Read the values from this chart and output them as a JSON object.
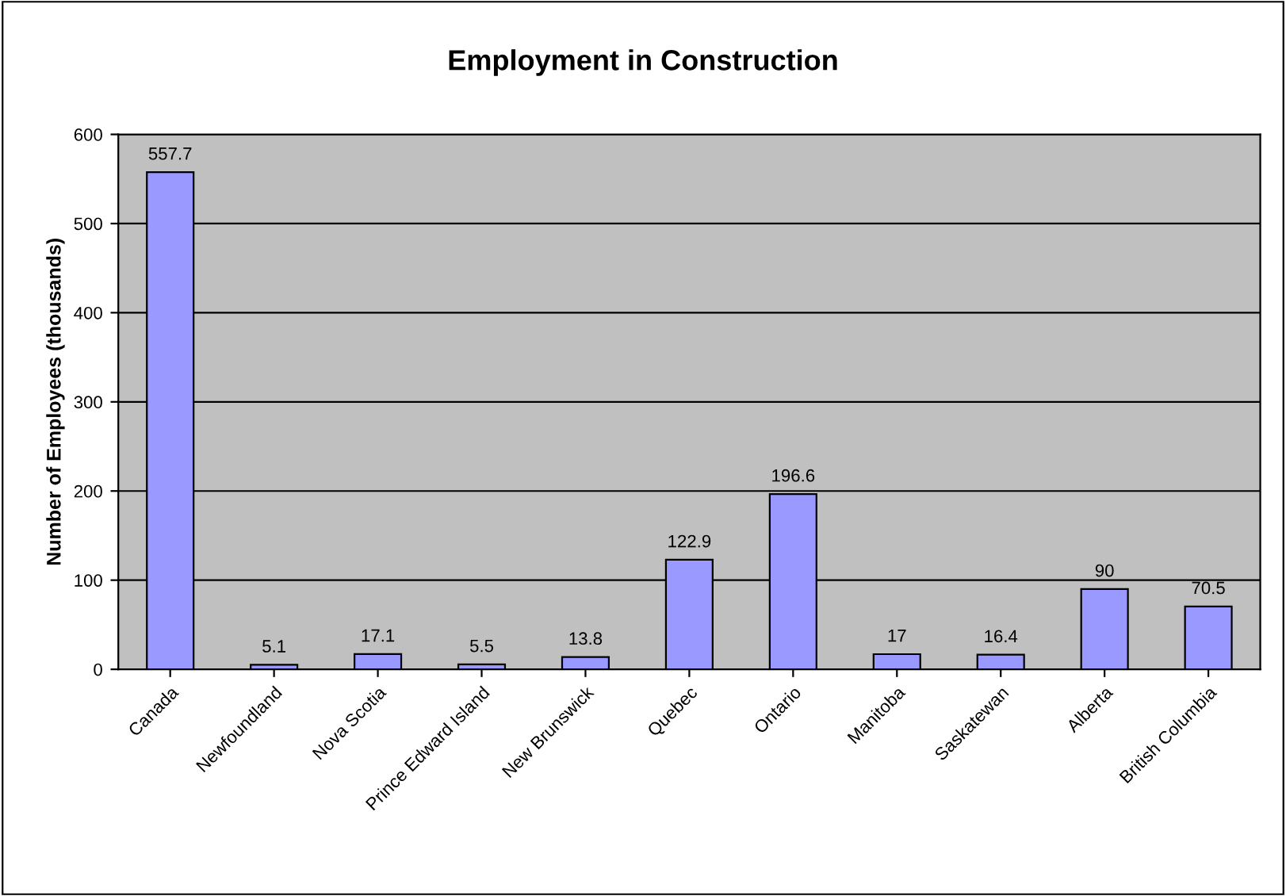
{
  "chart_data": {
    "type": "bar",
    "title": "Employment in Construction",
    "ylabel": "Number of Employees (thousands)",
    "categories": [
      "Canada",
      "Newfoundland",
      "Nova Scotia",
      "Prince Edward Island",
      "New Brunswick",
      "Quebec",
      "Ontario",
      "Manitoba",
      "Saskatewan",
      "Alberta",
      "British Columbia"
    ],
    "values": [
      557.7,
      5.1,
      17.1,
      5.5,
      13.8,
      122.9,
      196.6,
      17,
      16.4,
      90,
      70.5
    ],
    "color": "#9999ff",
    "ylim": [
      0,
      600
    ],
    "yticks": [
      0,
      100,
      200,
      300,
      400,
      500,
      600
    ],
    "grid": "y",
    "data_labels": true,
    "legend": false
  }
}
